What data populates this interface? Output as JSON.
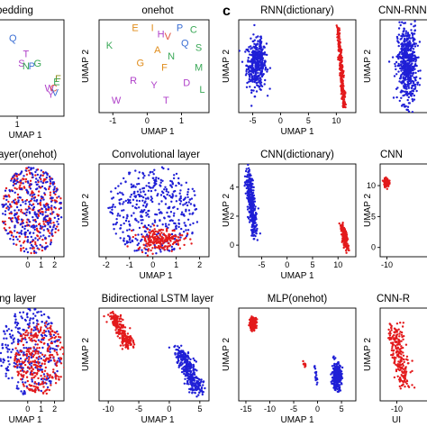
{
  "colors": {
    "red": "#e31a1c",
    "blue": "#1f1fd6",
    "axis": "#000000"
  },
  "panel_label": "c",
  "chart_data": [
    {
      "type": "scatter",
      "title": "bedding",
      "xlabel": "UMAP 1",
      "ylabel": "",
      "x_ticks": [
        "1"
      ],
      "letters": [
        {
          "t": "Q",
          "c": "#3b6fd4",
          "x": 0.7,
          "y": 3.7
        },
        {
          "t": "T",
          "c": "#b041c9",
          "x": 1.6,
          "y": 3.2
        },
        {
          "t": "S",
          "c": "#b041c9",
          "x": 1.3,
          "y": 2.9
        },
        {
          "t": "N",
          "c": "#3aa857",
          "x": 1.6,
          "y": 2.8
        },
        {
          "t": "P",
          "c": "#3b6fd4",
          "x": 2.0,
          "y": 2.8
        },
        {
          "t": "G",
          "c": "#3aa857",
          "x": 2.4,
          "y": 2.9
        },
        {
          "t": "F",
          "c": "#8a8a1a",
          "x": 3.8,
          "y": 2.4
        },
        {
          "t": "W",
          "c": "#b041c9",
          "x": 3.2,
          "y": 2.1
        },
        {
          "t": "C",
          "c": "#e0533d",
          "x": 3.5,
          "y": 2.1
        },
        {
          "t": "E",
          "c": "#3aa857",
          "x": 3.7,
          "y": 2.3
        },
        {
          "t": "Y",
          "c": "#b041c9",
          "x": 3.3,
          "y": 1.9
        },
        {
          "t": "V",
          "c": "#3b6fd4",
          "x": 3.6,
          "y": 1.95
        }
      ]
    },
    {
      "type": "scatter",
      "title": "onehot",
      "xlabel": "UMAP 1",
      "ylabel": "UMAP 2",
      "x_ticks": [
        "-1",
        "0",
        "1"
      ],
      "letters": [
        {
          "t": "E",
          "c": "#e08c1a",
          "x": -0.35,
          "y": 0.85
        },
        {
          "t": "I",
          "c": "#e08c1a",
          "x": 0.15,
          "y": 0.85
        },
        {
          "t": "P",
          "c": "#3b6fd4",
          "x": 0.95,
          "y": 0.85
        },
        {
          "t": "C",
          "c": "#3aa857",
          "x": 1.35,
          "y": 0.8
        },
        {
          "t": "H",
          "c": "#b041c9",
          "x": 0.4,
          "y": 0.7
        },
        {
          "t": "V",
          "c": "#e0533d",
          "x": 0.6,
          "y": 0.65
        },
        {
          "t": "Q",
          "c": "#3b6fd4",
          "x": 1.1,
          "y": 0.5
        },
        {
          "t": "S",
          "c": "#3aa857",
          "x": 1.5,
          "y": 0.4
        },
        {
          "t": "K",
          "c": "#3aa857",
          "x": -1.1,
          "y": 0.45
        },
        {
          "t": "A",
          "c": "#e08c1a",
          "x": 0.3,
          "y": 0.35
        },
        {
          "t": "N",
          "c": "#3aa857",
          "x": 0.7,
          "y": 0.2
        },
        {
          "t": "G",
          "c": "#e08c1a",
          "x": -0.2,
          "y": 0.05
        },
        {
          "t": "F",
          "c": "#e08c1a",
          "x": 0.5,
          "y": -0.05
        },
        {
          "t": "M",
          "c": "#3aa857",
          "x": 1.5,
          "y": -0.05
        },
        {
          "t": "R",
          "c": "#b041c9",
          "x": -0.4,
          "y": -0.35
        },
        {
          "t": "Y",
          "c": "#b041c9",
          "x": 0.2,
          "y": -0.45
        },
        {
          "t": "D",
          "c": "#b041c9",
          "x": 1.15,
          "y": -0.4
        },
        {
          "t": "L",
          "c": "#3aa857",
          "x": 1.6,
          "y": -0.55
        },
        {
          "t": "W",
          "c": "#b041c9",
          "x": -0.9,
          "y": -0.8
        },
        {
          "t": "T",
          "c": "#b041c9",
          "x": 0.55,
          "y": -0.8
        }
      ]
    },
    {
      "type": "scatter",
      "title": "RNN(dictionary)",
      "xlabel": "UMAP 1",
      "ylabel": "UMAP 2",
      "x_ticks": [
        "-5",
        "0",
        "5",
        "10"
      ],
      "series": [
        {
          "name": "",
          "color": "blue",
          "shape": "blob",
          "n": 380,
          "cx": -4.3,
          "cy": 0.5,
          "sx": 1.6,
          "sy": 2.3
        },
        {
          "name": "",
          "color": "blue",
          "shape": "line",
          "n": 40,
          "x0": -3.7,
          "y0": 3.0,
          "x1": -3.4,
          "y1": 0.5,
          "sx": 0.15,
          "sy": 0.3
        },
        {
          "name": "",
          "color": "red",
          "shape": "line",
          "n": 260,
          "x0": 10.3,
          "y0": 4.4,
          "x1": 11.4,
          "y1": -3.8,
          "sx": 0.15,
          "sy": 0.2
        }
      ]
    },
    {
      "type": "scatter",
      "title": "CNN-RNN",
      "xlabel": "",
      "ylabel": "UMAP 2",
      "x_ticks": [],
      "series": [
        {
          "name": "",
          "color": "blue",
          "shape": "blob",
          "n": 560,
          "cx": 0.5,
          "cy": 0.0,
          "sx": 0.45,
          "sy": 2.3
        }
      ]
    },
    {
      "type": "scatter",
      "title": "ayer(onehot)",
      "xlabel": "",
      "ylabel": "",
      "x_ticks": [
        "0",
        "1",
        "2"
      ],
      "series": [
        {
          "name": "",
          "color": "red",
          "shape": "disc",
          "n": 260,
          "cx": 0.3,
          "cy": 0.0,
          "r": 2.25
        },
        {
          "name": "",
          "color": "blue",
          "shape": "disc",
          "n": 300,
          "cx": 0.3,
          "cy": 0.0,
          "r": 2.25
        }
      ]
    },
    {
      "type": "scatter",
      "title": "Convolutional layer",
      "xlabel": "UMAP 1",
      "ylabel": "UMAP 2",
      "x_ticks": [
        "-2",
        "-1",
        "0",
        "1",
        "2"
      ],
      "series": [
        {
          "name": "",
          "color": "blue",
          "shape": "disc",
          "n": 420,
          "cx": 0.0,
          "cy": 0.3,
          "r": 2.0
        },
        {
          "name": "",
          "color": "red",
          "shape": "blob",
          "n": 200,
          "cx": 0.3,
          "cy": -1.0,
          "sx": 0.9,
          "sy": 0.45
        }
      ]
    },
    {
      "type": "scatter",
      "title": "CNN(dictionary)",
      "xlabel": "UMAP 1",
      "ylabel": "UMAP 2",
      "y_ticks": [
        "0",
        "2",
        "4"
      ],
      "x_ticks": [
        "-5",
        "0",
        "5",
        "10"
      ],
      "series": [
        {
          "name": "",
          "color": "blue",
          "shape": "line",
          "n": 300,
          "x0": -7.6,
          "y0": 4.8,
          "x1": -6.4,
          "y1": 0.8,
          "sx": 0.35,
          "sy": 0.3
        },
        {
          "name": "",
          "color": "red",
          "shape": "line",
          "n": 140,
          "x0": 10.8,
          "y0": 1.3,
          "x1": 11.8,
          "y1": -0.2,
          "sx": 0.25,
          "sy": 0.2
        }
      ]
    },
    {
      "type": "scatter",
      "title": "CNN",
      "xlabel": "",
      "ylabel": "UMAP 2",
      "y_ticks": [
        "10",
        "5",
        "0"
      ],
      "x_ticks": [
        "-10"
      ],
      "series": [
        {
          "name": "",
          "color": "red",
          "shape": "blob",
          "n": 140,
          "cx": -10.1,
          "cy": 10.5,
          "sx": 0.5,
          "sy": 0.6
        }
      ]
    },
    {
      "type": "scatter",
      "title": "ling layer",
      "xlabel": "UMAP 1",
      "ylabel": "",
      "x_ticks": [
        "0",
        "1",
        "2"
      ],
      "series": [
        {
          "name": "",
          "color": "blue",
          "shape": "disc",
          "n": 300,
          "cx": 0.2,
          "cy": 0.1,
          "r": 2.3
        },
        {
          "name": "",
          "color": "red",
          "shape": "disc",
          "n": 300,
          "cx": 0.9,
          "cy": -0.2,
          "r": 1.9
        }
      ]
    },
    {
      "type": "scatter",
      "title": "Bidirectional LSTM layer",
      "xlabel": "UMAP 1",
      "ylabel": "UMAP 2",
      "x_ticks": [
        "-10",
        "-5",
        "0",
        "5"
      ],
      "series": [
        {
          "name": "",
          "color": "red",
          "shape": "line",
          "n": 220,
          "x0": -9.3,
          "y0": 5.2,
          "x1": -6.5,
          "y1": 1.3,
          "sx": 0.5,
          "sy": 0.3
        },
        {
          "name": "",
          "color": "blue",
          "shape": "line",
          "n": 320,
          "x0": 1.5,
          "y0": 1.0,
          "x1": 4.8,
          "y1": -4.6,
          "sx": 0.6,
          "sy": 0.35
        }
      ]
    },
    {
      "type": "scatter",
      "title": "MLP(onehot)",
      "xlabel": "UMAP 1",
      "ylabel": "UMAP 2",
      "x_ticks": [
        "-15",
        "-10",
        "-5",
        "0",
        "5"
      ],
      "series": [
        {
          "name": "",
          "color": "red",
          "shape": "blob",
          "n": 180,
          "cx": -13.5,
          "cy": 8.2,
          "sx": 0.6,
          "sy": 0.8
        },
        {
          "name": "",
          "color": "red",
          "shape": "line",
          "n": 12,
          "x0": -3.1,
          "y0": 2.3,
          "x1": -2.3,
          "y1": 1.6,
          "sx": 0.15,
          "sy": 0.15
        },
        {
          "name": "",
          "color": "blue",
          "shape": "line",
          "n": 20,
          "x0": -0.6,
          "y0": 2.0,
          "x1": -0.1,
          "y1": -1.0,
          "sx": 0.12,
          "sy": 0.2
        },
        {
          "name": "",
          "color": "blue",
          "shape": "blob",
          "n": 280,
          "cx": 4.0,
          "cy": 0.2,
          "sx": 0.9,
          "sy": 1.8
        }
      ]
    },
    {
      "type": "scatter",
      "title": "CNN-R",
      "xlabel": "UI",
      "ylabel": "UMAP 2",
      "x_ticks": [
        "-10"
      ],
      "series": [
        {
          "name": "",
          "color": "red",
          "shape": "line",
          "n": 220,
          "x0": -10.3,
          "y0": 7.5,
          "x1": -9.0,
          "y1": 1.5,
          "sx": 0.45,
          "sy": 0.5
        }
      ]
    }
  ]
}
